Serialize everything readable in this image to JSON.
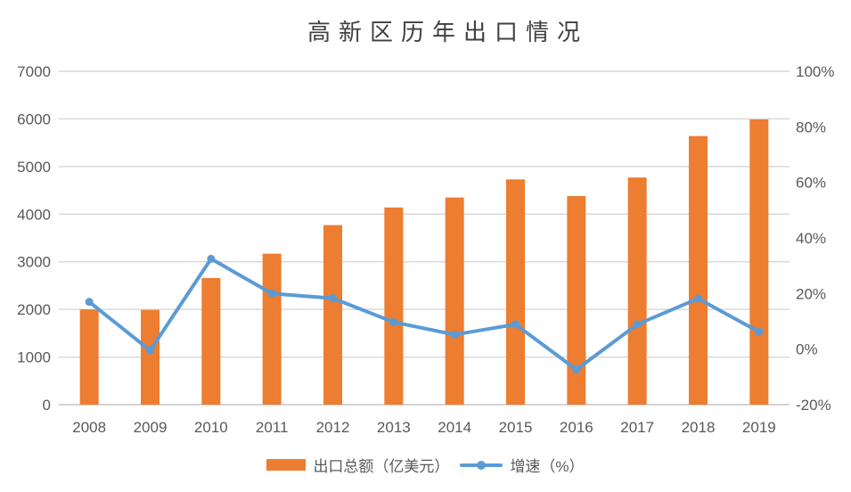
{
  "title": "高新区历年出口情况",
  "legend": {
    "items": [
      {
        "label": "出口总额（亿美元）",
        "swatch": "orange-bar"
      },
      {
        "label": "增速（%）",
        "swatch": "blue-line-with-dot"
      }
    ]
  },
  "colors": {
    "bar": "#ED7D31",
    "line": "#5B9BD5",
    "grid": "#D9D9D9",
    "axis": "#D4D4D4",
    "text": "#595959",
    "title_text": "#404040"
  },
  "chart_data": {
    "type": "combo-bar-line",
    "title": "高新区历年出口情况",
    "categories": [
      "2008",
      "2009",
      "2010",
      "2011",
      "2012",
      "2013",
      "2014",
      "2015",
      "2016",
      "2017",
      "2018",
      "2019"
    ],
    "series": [
      {
        "name": "出口总额（亿美元）",
        "type": "bar",
        "axis": "left",
        "values": [
          2000,
          1990,
          2660,
          3170,
          3770,
          4140,
          4350,
          4730,
          4380,
          4770,
          5640,
          5990
        ]
      },
      {
        "name": "增速（%）",
        "type": "line",
        "axis": "right",
        "values": [
          17,
          -0.5,
          32.5,
          20,
          18.3,
          9.7,
          5.2,
          8.9,
          -7.4,
          8.9,
          18.2,
          6.2
        ]
      }
    ],
    "left_axis": {
      "min": 0,
      "max": 7000,
      "step": 1000,
      "tick_labels": [
        "0",
        "1000",
        "2000",
        "3000",
        "4000",
        "5000",
        "6000",
        "7000"
      ]
    },
    "right_axis": {
      "min": -20,
      "max": 100,
      "step": 20,
      "format": "percent",
      "tick_labels": [
        "-20%",
        "0%",
        "20%",
        "40%",
        "60%",
        "80%",
        "100%"
      ]
    },
    "grid": "horizontal",
    "legend_position": "bottom"
  }
}
